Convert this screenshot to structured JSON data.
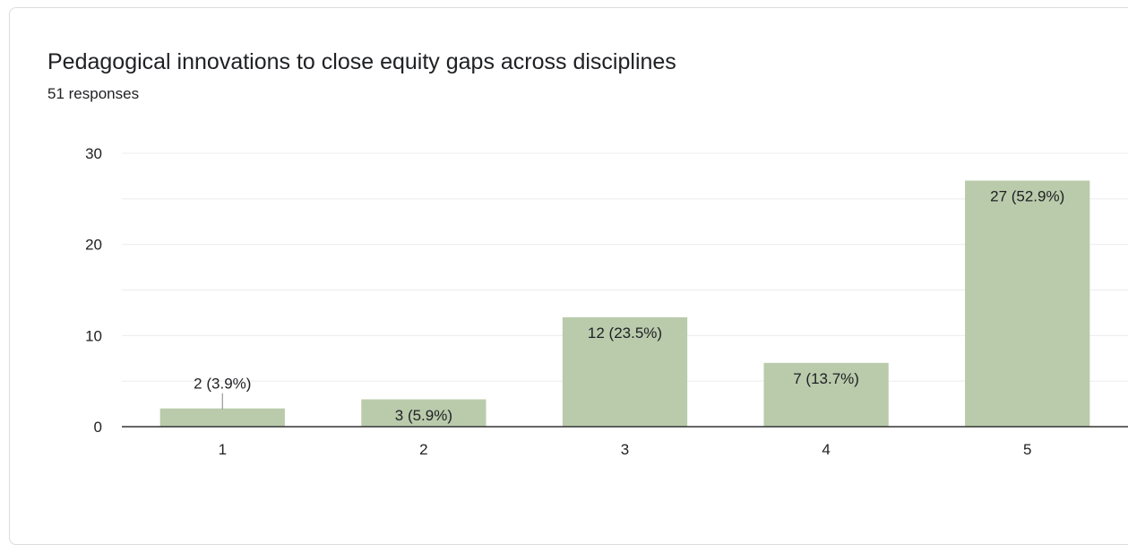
{
  "form": {
    "title": "Pedagogical innovations to close equity gaps across disciplines",
    "responses": "51 responses"
  },
  "chart_data": {
    "type": "bar",
    "title": "Pedagogical innovations to close equity gaps across disciplines",
    "subtitle": "51 responses",
    "xlabel": "",
    "ylabel": "",
    "categories": [
      "1",
      "2",
      "3",
      "4",
      "5"
    ],
    "values": [
      2,
      3,
      12,
      7,
      27
    ],
    "data_labels": [
      "2 (3.9%)",
      "3 (5.9%)",
      "12 (23.5%)",
      "7 (13.7%)",
      "27 (52.9%)"
    ],
    "ylim": [
      0,
      30
    ],
    "yticks": [
      0,
      10,
      20,
      30
    ],
    "grid": true,
    "legend": "none",
    "colors": {
      "bar": "#b9cbab",
      "grid": "#ececec",
      "axis": "#333333",
      "label": "#202124",
      "tick": "#222222"
    }
  }
}
